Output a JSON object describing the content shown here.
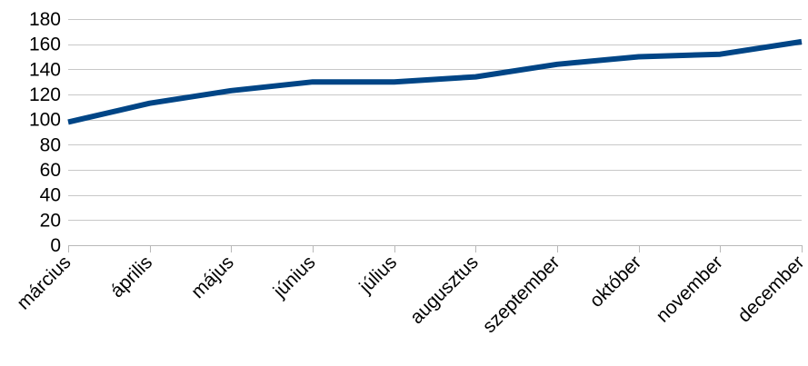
{
  "chart_data": {
    "type": "line",
    "categories": [
      "március",
      "április",
      "május",
      "június",
      "július",
      "augusztus",
      "szeptember",
      "október",
      "november",
      "december"
    ],
    "series": [
      {
        "values": [
          98,
          113,
          123,
          130,
          130,
          134,
          144,
          150,
          152,
          162
        ]
      }
    ],
    "ylim": [
      0,
      180
    ],
    "yticks": [
      0,
      20,
      40,
      60,
      80,
      100,
      120,
      140,
      160,
      180
    ],
    "grid": true,
    "legend": "none",
    "colors": {
      "series": "#004586",
      "grid": "#c8c8c8",
      "axis": "#b8b8b8"
    }
  }
}
